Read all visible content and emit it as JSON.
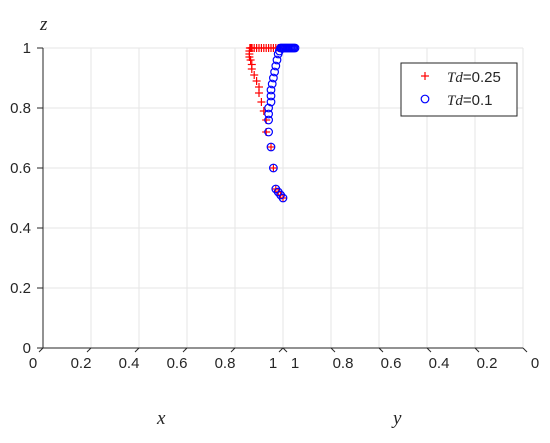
{
  "chart_data": {
    "type": "scatter3d",
    "axes": {
      "x": {
        "label": "x",
        "lim": [
          0,
          1
        ],
        "ticks": [
          "0",
          "0.2",
          "0.4",
          "0.6",
          "0.8",
          "1"
        ]
      },
      "y": {
        "label": "y",
        "lim": [
          0,
          1
        ],
        "ticks": [
          "0",
          "0.2",
          "0.4",
          "0.6",
          "0.8",
          "1"
        ]
      },
      "z": {
        "label": "z",
        "lim": [
          0,
          1
        ],
        "ticks": [
          "0",
          "0.2",
          "0.4",
          "0.6",
          "0.8",
          "1"
        ]
      }
    },
    "grid": true,
    "legend_position": "top-right",
    "series": [
      {
        "name_prefix": "Td",
        "name_suffix": "=0.25",
        "marker": "plus",
        "color": "#ff0000",
        "points": [
          [
            0.5,
            0.5,
            0.5
          ],
          [
            0.52,
            0.51,
            0.51
          ],
          [
            0.54,
            0.52,
            0.52
          ],
          [
            0.56,
            0.53,
            0.53
          ],
          [
            0.62,
            0.58,
            0.6
          ],
          [
            0.68,
            0.63,
            0.67
          ],
          [
            0.74,
            0.67,
            0.72
          ],
          [
            0.78,
            0.71,
            0.76
          ],
          [
            0.81,
            0.73,
            0.79
          ],
          [
            0.84,
            0.75,
            0.82
          ],
          [
            0.87,
            0.77,
            0.85
          ],
          [
            0.89,
            0.79,
            0.87
          ],
          [
            0.91,
            0.8,
            0.89
          ],
          [
            0.93,
            0.81,
            0.91
          ],
          [
            0.95,
            0.82,
            0.93
          ],
          [
            0.96,
            0.83,
            0.945
          ],
          [
            0.97,
            0.835,
            0.96
          ],
          [
            0.98,
            0.84,
            0.97
          ],
          [
            0.985,
            0.845,
            0.98
          ],
          [
            0.99,
            0.85,
            0.99
          ],
          [
            0.993,
            0.855,
            1.0
          ],
          [
            0.996,
            0.86,
            1.0
          ],
          [
            0.998,
            0.865,
            1.0
          ],
          [
            0.999,
            0.87,
            1.0
          ],
          [
            1.0,
            0.87,
            1.0
          ],
          [
            1.0,
            0.88,
            1.0
          ],
          [
            1.0,
            0.89,
            1.0
          ],
          [
            1.0,
            0.9,
            1.0
          ],
          [
            1.0,
            0.91,
            1.0
          ],
          [
            1.0,
            0.92,
            1.0
          ],
          [
            1.0,
            0.93,
            1.0
          ],
          [
            1.0,
            0.94,
            1.0
          ],
          [
            1.0,
            0.95,
            1.0
          ],
          [
            1.0,
            0.96,
            1.0
          ],
          [
            1.0,
            0.97,
            1.0
          ],
          [
            1.0,
            0.98,
            1.0
          ],
          [
            1.0,
            0.99,
            1.0
          ],
          [
            1.0,
            1.0,
            1.0
          ]
        ]
      },
      {
        "name_prefix": "Td",
        "name_suffix": "=0.1",
        "marker": "circle",
        "color": "#0000ff",
        "points": [
          [
            0.5,
            0.5,
            0.5
          ],
          [
            0.52,
            0.51,
            0.51
          ],
          [
            0.54,
            0.52,
            0.52
          ],
          [
            0.56,
            0.53,
            0.53
          ],
          [
            0.62,
            0.58,
            0.6
          ],
          [
            0.68,
            0.63,
            0.67
          ],
          [
            0.74,
            0.68,
            0.72
          ],
          [
            0.78,
            0.72,
            0.76
          ],
          [
            0.8,
            0.74,
            0.78
          ],
          [
            0.82,
            0.76,
            0.8
          ],
          [
            0.83,
            0.78,
            0.82
          ],
          [
            0.84,
            0.79,
            0.84
          ],
          [
            0.85,
            0.8,
            0.86
          ],
          [
            0.855,
            0.81,
            0.88
          ],
          [
            0.86,
            0.82,
            0.9
          ],
          [
            0.865,
            0.83,
            0.92
          ],
          [
            0.87,
            0.84,
            0.94
          ],
          [
            0.875,
            0.85,
            0.96
          ],
          [
            0.88,
            0.86,
            0.98
          ],
          [
            0.885,
            0.87,
            0.99
          ],
          [
            0.89,
            0.88,
            1.0
          ],
          [
            0.895,
            0.89,
            1.0
          ],
          [
            0.9,
            0.9,
            1.0
          ],
          [
            0.905,
            0.91,
            1.0
          ],
          [
            0.91,
            0.92,
            1.0
          ],
          [
            0.915,
            0.93,
            1.0
          ],
          [
            0.92,
            0.94,
            1.0
          ],
          [
            0.925,
            0.95,
            1.0
          ],
          [
            0.93,
            0.96,
            1.0
          ],
          [
            0.935,
            0.97,
            1.0
          ],
          [
            0.94,
            0.98,
            1.0
          ],
          [
            0.945,
            0.99,
            1.0
          ],
          [
            0.95,
            1.0,
            1.0
          ]
        ]
      }
    ]
  }
}
